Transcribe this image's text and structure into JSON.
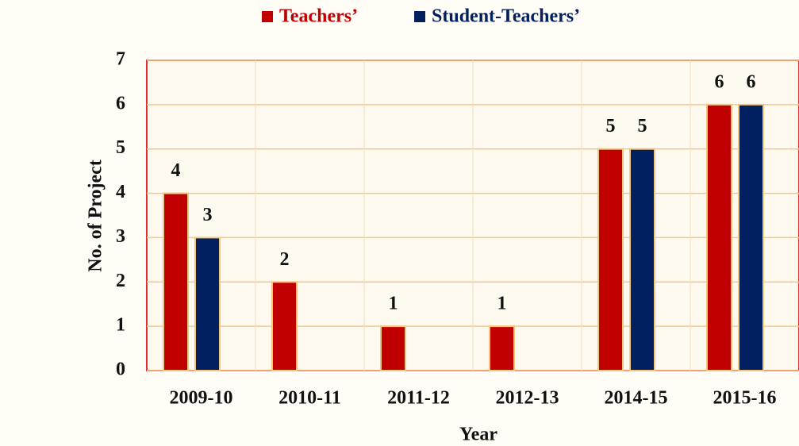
{
  "chart_data": {
    "type": "bar",
    "categories": [
      "2009-10",
      "2010-11",
      "2011-12",
      "2012-13",
      "2014-15",
      "2015-16"
    ],
    "series": [
      {
        "name": "Teachers’",
        "color": "#c00000",
        "values": [
          4,
          2,
          1,
          1,
          5,
          6
        ]
      },
      {
        "name": "Student-Teachers’",
        "color": "#002060",
        "values": [
          3,
          null,
          null,
          null,
          5,
          6
        ]
      }
    ],
    "ylim": [
      0,
      7
    ],
    "yticks": [
      0,
      1,
      2,
      3,
      4,
      5,
      6,
      7
    ],
    "grid": true,
    "y_label": "No. of Project",
    "x_label": "Year",
    "legend": "top"
  }
}
